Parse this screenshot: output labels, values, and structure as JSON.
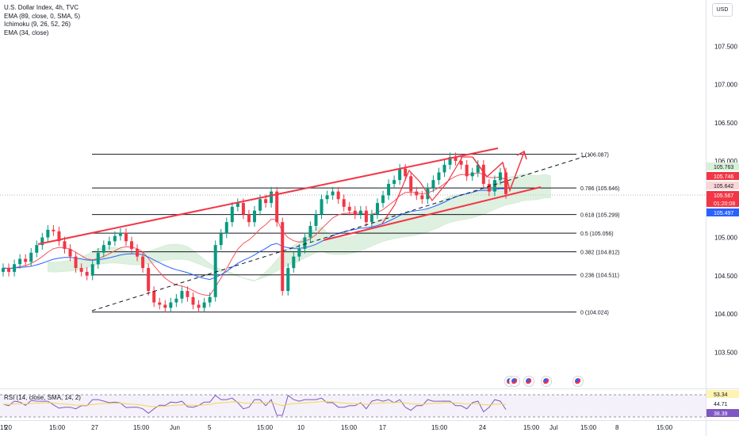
{
  "header": {
    "symbol": "U.S. Dollar Index, 4h, TVC",
    "indicators": [
      "EMA (89, close, 0, SMA, 5)",
      "Ichimoku (9, 26, 52, 26)",
      "EMA (34, close)"
    ],
    "currency": "USD"
  },
  "price_scale": {
    "ticks": [
      "107.500",
      "107.000",
      "106.500",
      "106.000",
      "105.000",
      "104.500",
      "104.000",
      "103.500"
    ],
    "tags": [
      {
        "label": "105.763",
        "bg": "#d8f0d8",
        "fg": "#131722"
      },
      {
        "label": "105.746",
        "bg": "#f23645",
        "fg": "#ffffff"
      },
      {
        "label": "105.642",
        "bg": "#fad6d6",
        "fg": "#131722"
      },
      {
        "label": "105.567",
        "bg": "#f23645",
        "fg": "#ffffff"
      },
      {
        "label": "01:20:08",
        "bg": "#f23645",
        "fg": "#ffffff"
      },
      {
        "label": "105.497",
        "bg": "#2962ff",
        "fg": "#ffffff"
      }
    ]
  },
  "fib_levels": [
    {
      "ratio": "1",
      "label": "1 (106.087)",
      "price": 106.087
    },
    {
      "ratio": "0.786",
      "label": "0.786 (105.646)",
      "price": 105.646
    },
    {
      "ratio": "0.618",
      "label": "0.618 (105.299)",
      "price": 105.299
    },
    {
      "ratio": "0.5",
      "label": "0.5 (105.056)",
      "price": 105.056
    },
    {
      "ratio": "0.382",
      "label": "0.382 (104.812)",
      "price": 104.812
    },
    {
      "ratio": "0.236",
      "label": "0.236 (104.511)",
      "price": 104.511
    },
    {
      "ratio": "0",
      "label": "0 (104.024)",
      "price": 104.024
    }
  ],
  "rsi": {
    "label": "RSI (14, close, SMA, 14, 2)",
    "tags": [
      {
        "label": "53.34",
        "bg": "#fff3b0",
        "fg": "#131722"
      },
      {
        "label": "44.71",
        "bg": "#ffffff",
        "fg": "#131722"
      },
      {
        "label": "38.39",
        "bg": "#7e57c2",
        "fg": "#ffffff"
      }
    ]
  },
  "time_axis": [
    "20",
    "15:00",
    "27",
    "15:00",
    "Jun",
    "5",
    "15:00",
    "10",
    "15:00",
    "17",
    "15:00",
    "24",
    "15:00",
    "Jul",
    "15:00",
    "8",
    "15:00",
    "15"
  ],
  "colors": {
    "up": "#089981",
    "down": "#f23645",
    "ema34": "#f7525f",
    "ema89": "#2962ff",
    "cloud": "#b7dfb9",
    "rsi": "#7e57c2",
    "rsi_ma": "#f5d749",
    "trendline": "#f23645"
  },
  "chart_data": {
    "type": "candlestick",
    "title": "U.S. Dollar Index, 4h, TVC",
    "ylim": [
      103.3,
      107.9
    ],
    "close_series": [
      104.6,
      104.55,
      104.65,
      104.72,
      104.68,
      104.8,
      104.9,
      105.0,
      105.1,
      105.08,
      104.95,
      104.85,
      104.75,
      104.6,
      104.55,
      104.5,
      104.65,
      104.8,
      104.9,
      104.95,
      105.02,
      105.06,
      104.95,
      104.85,
      104.75,
      104.6,
      104.3,
      104.15,
      104.12,
      104.08,
      104.15,
      104.2,
      104.3,
      104.22,
      104.12,
      104.08,
      104.15,
      104.22,
      104.9,
      105.05,
      105.2,
      105.4,
      105.45,
      105.3,
      105.2,
      105.35,
      105.5,
      105.45,
      105.6,
      105.2,
      104.3,
      104.6,
      104.75,
      104.85,
      105.0,
      105.15,
      105.3,
      105.5,
      105.55,
      105.6,
      105.5,
      105.4,
      105.35,
      105.3,
      105.35,
      105.2,
      105.3,
      105.45,
      105.55,
      105.7,
      105.75,
      105.9,
      105.8,
      105.6,
      105.55,
      105.5,
      105.65,
      105.75,
      105.85,
      105.95,
      106.05,
      106.0,
      105.95,
      105.8,
      105.85,
      105.95,
      105.7,
      105.6,
      105.75,
      105.85,
      105.567
    ],
    "fibonacci": [
      106.087,
      105.646,
      105.299,
      105.056,
      104.812,
      104.511,
      104.024
    ],
    "rsi_levels": {
      "upper": 53.34,
      "mid": 44.71,
      "lower": 38.39
    }
  }
}
